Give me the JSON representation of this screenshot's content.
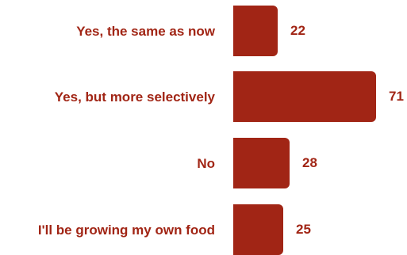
{
  "colors": {
    "bar": "#a12515",
    "label": "#a12515"
  },
  "chart_data": {
    "type": "bar",
    "orientation": "horizontal",
    "categories": [
      "Yes, the same as now",
      "Yes, but more selectively",
      "No",
      "I'll be growing my own food"
    ],
    "values": [
      22,
      71,
      28,
      25
    ],
    "title": "",
    "xlabel": "",
    "ylabel": "",
    "xlim": [
      0,
      71
    ],
    "grid": false,
    "legend": "none"
  }
}
